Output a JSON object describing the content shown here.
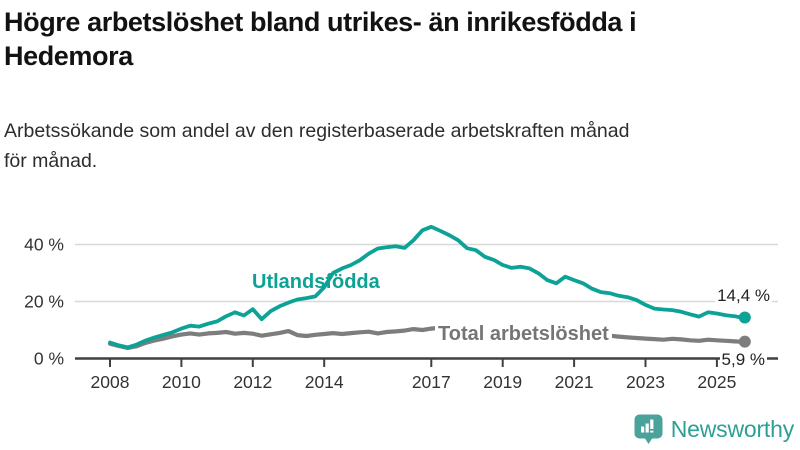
{
  "header": {
    "title": "Högre arbetslöshet bland utrikes- än inrikesfödda i Hedemora",
    "title_lines": [
      "Högre arbetslöshet bland utrikes- än inrikesfödda i",
      "Hedemora"
    ],
    "subtitle": "Arbetssökande som andel av den registerbaserade arbetskraften månad för månad.",
    "subtitle_lines": [
      "Arbetssökande som andel av den registerbaserade arbetskraften månad",
      "för månad."
    ]
  },
  "chart_data": {
    "type": "line",
    "title": "Högre arbetslöshet bland utrikes- än inrikesfödda i Hedemora",
    "subtitle": "Arbetssökande som andel av den registerbaserade arbetskraften månad för månad.",
    "unit": "%",
    "grid": "horizontal-only",
    "legend": "inline-labels",
    "xlim": [
      2008,
      2025.9
    ],
    "ylim": [
      0,
      48
    ],
    "x_tick_years": [
      2008,
      2010,
      2012,
      2014,
      2017,
      2019,
      2021,
      2023,
      2025
    ],
    "x_tick_labels": [
      "2008",
      "2010",
      "2012",
      "2014",
      "2017",
      "2019",
      "2021",
      "2023",
      "2025"
    ],
    "y_ticks": [
      0,
      20,
      40
    ],
    "y_tick_labels": [
      "0 %",
      "20 %",
      "40 %"
    ],
    "x": [
      2008.0,
      2008.25,
      2008.5,
      2008.75,
      2009.0,
      2009.25,
      2009.5,
      2009.75,
      2010.0,
      2010.25,
      2010.5,
      2010.75,
      2011.0,
      2011.25,
      2011.5,
      2011.75,
      2012.0,
      2012.25,
      2012.5,
      2012.75,
      2013.0,
      2013.25,
      2013.5,
      2013.75,
      2014.0,
      2014.25,
      2014.5,
      2014.75,
      2015.0,
      2015.25,
      2015.5,
      2015.75,
      2016.0,
      2016.25,
      2016.5,
      2016.75,
      2017.0,
      2017.25,
      2017.5,
      2017.75,
      2018.0,
      2018.25,
      2018.5,
      2018.75,
      2019.0,
      2019.25,
      2019.5,
      2019.75,
      2020.0,
      2020.25,
      2020.5,
      2020.75,
      2021.0,
      2021.25,
      2021.5,
      2021.75,
      2022.0,
      2022.25,
      2022.5,
      2022.75,
      2023.0,
      2023.25,
      2023.5,
      2023.75,
      2024.0,
      2024.25,
      2024.5,
      2024.75,
      2025.0,
      2025.25,
      2025.5,
      2025.67
    ],
    "series": [
      {
        "name": "Utlandsfödda",
        "color": "#0ca295",
        "end_label": "14,4 %",
        "end_value": 14.4,
        "values": [
          5.6,
          4.6,
          3.9,
          4.9,
          6.3,
          7.4,
          8.3,
          9.2,
          10.5,
          11.5,
          11.2,
          12.2,
          13.0,
          14.8,
          16.2,
          15.1,
          17.3,
          13.8,
          16.6,
          18.3,
          19.6,
          20.7,
          21.2,
          21.8,
          25.0,
          30.0,
          31.6,
          32.8,
          34.5,
          36.8,
          38.6,
          39.0,
          39.4,
          38.8,
          41.5,
          45.0,
          46.2,
          44.8,
          43.3,
          41.5,
          38.7,
          38.0,
          35.7,
          34.6,
          32.8,
          31.8,
          32.2,
          31.6,
          29.9,
          27.5,
          26.4,
          28.7,
          27.5,
          26.4,
          24.5,
          23.3,
          22.9,
          22.0,
          21.5,
          20.5,
          18.8,
          17.5,
          17.2,
          17.0,
          16.4,
          15.5,
          14.7,
          16.2,
          15.8,
          15.2,
          14.8,
          14.4
        ]
      },
      {
        "name": "Total arbetslöshet",
        "color": "#7d7d7d",
        "end_label": "5,9 %",
        "end_value": 5.9,
        "values": [
          5.2,
          4.4,
          3.7,
          4.3,
          5.5,
          6.3,
          7.0,
          7.8,
          8.4,
          8.8,
          8.4,
          8.8,
          9.0,
          9.3,
          8.7,
          9.0,
          8.7,
          8.0,
          8.5,
          9.0,
          9.6,
          8.2,
          7.9,
          8.3,
          8.6,
          8.9,
          8.6,
          8.9,
          9.2,
          9.4,
          8.8,
          9.3,
          9.5,
          9.8,
          10.3,
          10.0,
          10.5,
          10.8,
          10.2,
          10.0,
          9.7,
          10.0,
          9.5,
          9.7,
          9.3,
          9.0,
          9.2,
          9.4,
          9.0,
          9.6,
          9.9,
          9.6,
          9.4,
          9.0,
          8.6,
          8.3,
          8.0,
          7.7,
          7.4,
          7.2,
          7.0,
          6.8,
          6.6,
          6.9,
          6.7,
          6.4,
          6.2,
          6.6,
          6.4,
          6.2,
          6.0,
          5.9
        ]
      }
    ]
  },
  "branding": {
    "logo_text": "Newsworthy",
    "logo_icon": "bar-chart-speech-bubble-icon",
    "logo_text_color": "#2d9f96",
    "logo_icon_color": "#4aa29b"
  },
  "style_colors": {
    "axis": "#404040",
    "tick_text": "#333333",
    "gridline": "#d8d8d8",
    "title_text": "#121212",
    "subtitle_text": "#2d2d2d"
  }
}
